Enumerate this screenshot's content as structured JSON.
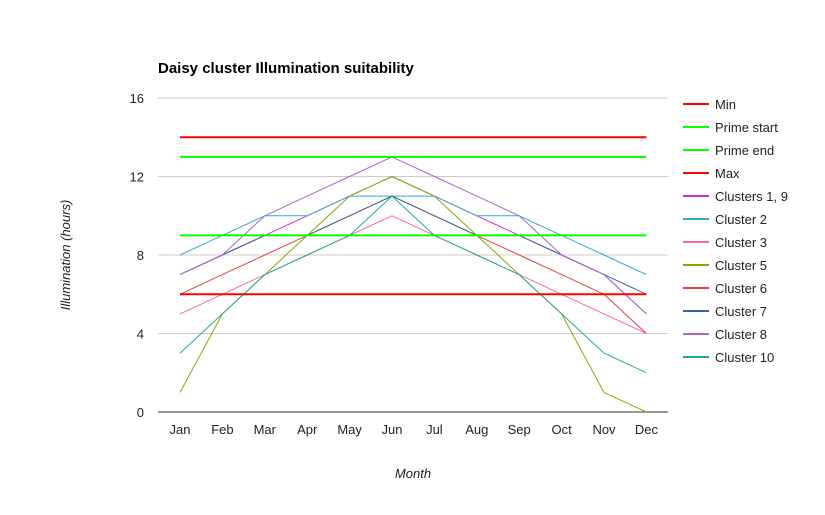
{
  "chart_data": {
    "type": "line",
    "title": "Daisy cluster Illumination suitability",
    "xlabel": "Month",
    "ylabel": "Illumination (hours)",
    "ylim": [
      0,
      16
    ],
    "yticks": [
      0,
      4,
      8,
      12,
      16
    ],
    "grid": true,
    "legend_position": "right",
    "categories": [
      "Jan",
      "Feb",
      "Mar",
      "Apr",
      "May",
      "Jun",
      "Jul",
      "Aug",
      "Sep",
      "Oct",
      "Nov",
      "Dec"
    ],
    "series": [
      {
        "name": "Min",
        "color": "#ff0000",
        "width": 2,
        "values": [
          6,
          6,
          6,
          6,
          6,
          6,
          6,
          6,
          6,
          6,
          6,
          6
        ]
      },
      {
        "name": "Prime start",
        "color": "#00ff00",
        "width": 2,
        "values": [
          9,
          9,
          9,
          9,
          9,
          9,
          9,
          9,
          9,
          9,
          9,
          9
        ]
      },
      {
        "name": "Prime end",
        "color": "#00ff00",
        "width": 2,
        "values": [
          13,
          13,
          13,
          13,
          13,
          13,
          13,
          13,
          13,
          13,
          13,
          13
        ]
      },
      {
        "name": "Max",
        "color": "#ff0000",
        "width": 2,
        "values": [
          14,
          14,
          14,
          14,
          14,
          14,
          14,
          14,
          14,
          14,
          14,
          14
        ]
      },
      {
        "name": "Clusters 1, 9",
        "color": "#cc33cc",
        "width": 1,
        "values": [
          7,
          8,
          9,
          10,
          11,
          12,
          11,
          10,
          9,
          8,
          7,
          5
        ]
      },
      {
        "name": "Cluster 2",
        "color": "#33aacc",
        "width": 1,
        "values": [
          8,
          9,
          10,
          10,
          11,
          11,
          11,
          10,
          10,
          9,
          8,
          7
        ]
      },
      {
        "name": "Cluster 3",
        "color": "#ff6699",
        "width": 1,
        "values": [
          5,
          6,
          7,
          8,
          9,
          10,
          9,
          8,
          7,
          6,
          5,
          4
        ]
      },
      {
        "name": "Cluster 5",
        "color": "#88aa00",
        "width": 1,
        "values": [
          1,
          5,
          7,
          9,
          11,
          12,
          11,
          9,
          7,
          5,
          1,
          0
        ]
      },
      {
        "name": "Cluster 6",
        "color": "#dd4444",
        "width": 1,
        "values": [
          6,
          7,
          8,
          9,
          10,
          11,
          10,
          9,
          8,
          7,
          6,
          4
        ]
      },
      {
        "name": "Cluster 7",
        "color": "#336699",
        "width": 1,
        "values": [
          7,
          8,
          9,
          9,
          10,
          11,
          10,
          9,
          9,
          8,
          7,
          6
        ]
      },
      {
        "name": "Cluster 8",
        "color": "#aa66cc",
        "width": 1,
        "values": [
          7,
          8,
          10,
          11,
          12,
          13,
          12,
          11,
          10,
          8,
          7,
          5
        ]
      },
      {
        "name": "Cluster 10",
        "color": "#22aa99",
        "width": 1,
        "values": [
          3,
          5,
          7,
          8,
          9,
          11,
          9,
          8,
          7,
          5,
          3,
          2
        ]
      }
    ]
  }
}
